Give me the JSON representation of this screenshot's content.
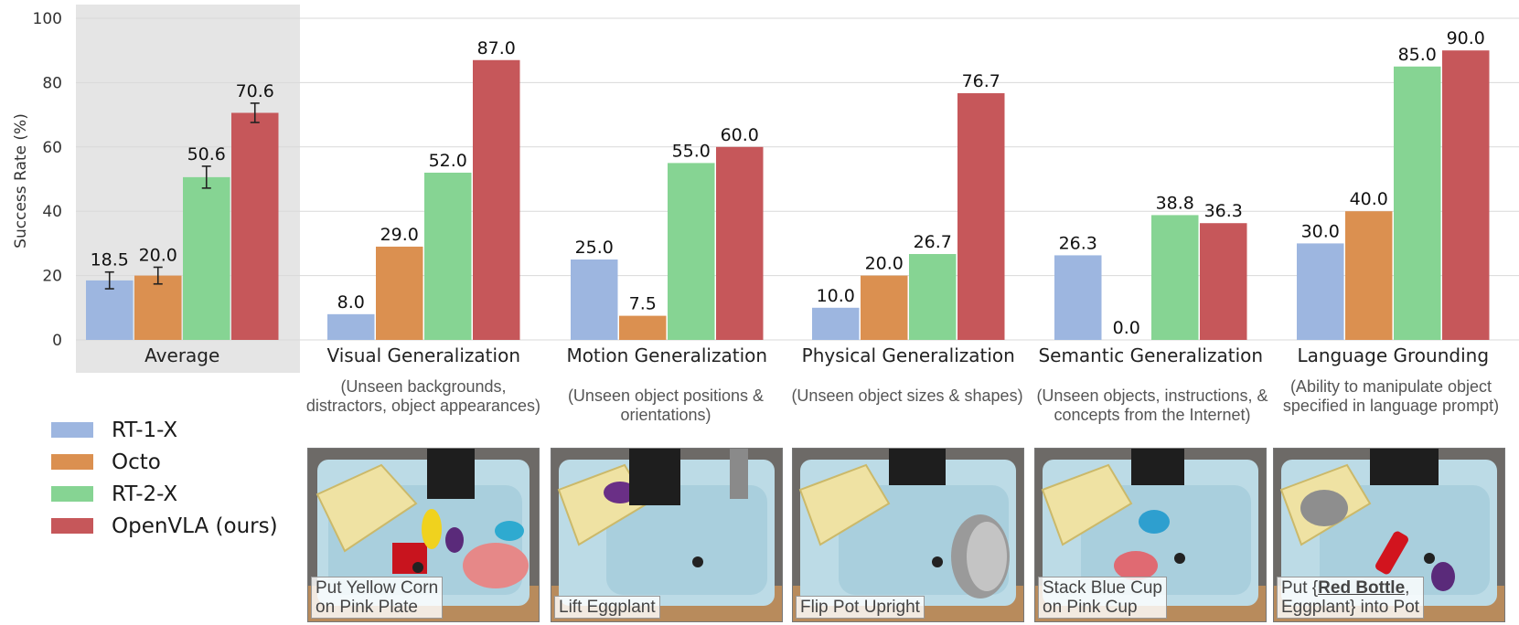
{
  "chart_data": {
    "type": "bar",
    "ylabel": "Success Rate (%)",
    "ylim": [
      0,
      100
    ],
    "yticks": [
      0,
      20,
      40,
      60,
      80,
      100
    ],
    "grid": true,
    "legend_position": "bottom-left",
    "categories": [
      "Average",
      "Visual Generalization",
      "Motion Generalization",
      "Physical Generalization",
      "Semantic Generalization",
      "Language Grounding"
    ],
    "subtitles": [
      "",
      "(Unseen backgrounds, distractors, object appearances)",
      "(Unseen object positions & orientations)",
      "(Unseen object sizes & shapes)",
      "(Unseen objects, instructions, & concepts from the Internet)",
      "(Ability to manipulate object specified in language prompt)"
    ],
    "series": [
      {
        "name": "RT-1-X",
        "color": "#9db6e0",
        "values": [
          18.5,
          8.0,
          25.0,
          10.0,
          26.3,
          30.0
        ],
        "labels": [
          "18.5",
          "8.0",
          "25.0",
          "10.0",
          "26.3",
          "30.0"
        ],
        "avg_error": 2.6
      },
      {
        "name": "Octo",
        "color": "#db9050",
        "values": [
          20.0,
          29.0,
          7.5,
          20.0,
          0.0,
          40.0
        ],
        "labels": [
          "20.0",
          "29.0",
          "7.5",
          "20.0",
          "0.0",
          "40.0"
        ],
        "avg_error": 2.6
      },
      {
        "name": "RT-2-X",
        "color": "#86d493",
        "values": [
          50.6,
          52.0,
          55.0,
          26.7,
          38.8,
          85.0
        ],
        "labels": [
          "50.6",
          "52.0",
          "55.0",
          "26.7",
          "38.8",
          "85.0"
        ],
        "avg_error": 3.4
      },
      {
        "name": "OpenVLA (ours)",
        "color": "#c6575a",
        "values": [
          70.6,
          87.0,
          60.0,
          76.7,
          36.3,
          90.0
        ],
        "labels": [
          "70.6",
          "87.0",
          "60.0",
          "76.7",
          "36.3",
          "90.0"
        ],
        "avg_error": 3.0
      }
    ]
  },
  "legend": [
    {
      "label": "RT-1-X",
      "color": "#9db6e0"
    },
    {
      "label": "Octo",
      "color": "#db9050"
    },
    {
      "label": "RT-2-X",
      "color": "#86d493"
    },
    {
      "label": "OpenVLA (ours)",
      "color": "#c6575a"
    }
  ],
  "photos": [
    {
      "caption_line1": "Put Yellow Corn",
      "caption_line2": "on Pink Plate"
    },
    {
      "caption_line1": "Lift Eggplant",
      "caption_line2": ""
    },
    {
      "caption_line1": "Flip Pot Upright",
      "caption_line2": ""
    },
    {
      "caption_line1": "Stack Blue Cup",
      "caption_line2": "on Pink Cup"
    },
    {
      "caption_pre": "Put {",
      "caption_bold": "Red Bottle",
      "caption_post": ",",
      "caption_line2": "Eggplant} into Pot"
    }
  ],
  "colors": {
    "average_panel": "#e5e5e5",
    "grid": "#d9d9d9",
    "sink": "#a9cfdd",
    "rack": "#efe2a3",
    "wood": "#b88b5c"
  }
}
